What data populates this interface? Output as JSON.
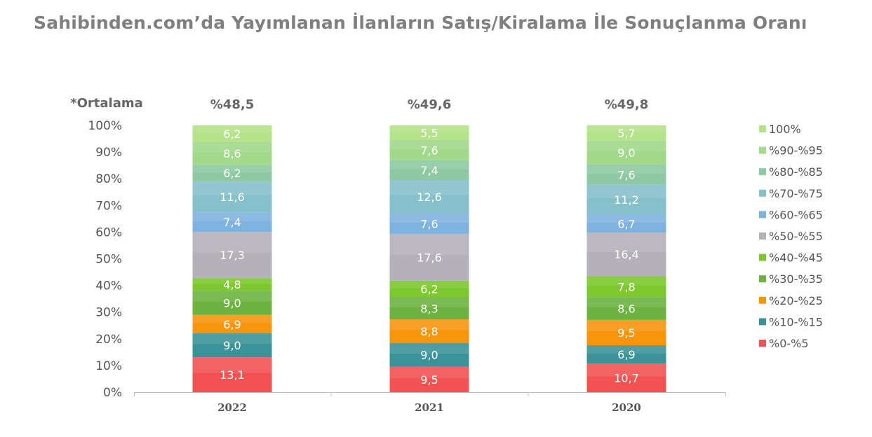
{
  "title": "Sahibinden.com’da Yayımlanan İlanların Satış/Kiralama İle Sonuçlanma Oranı",
  "chart_data": {
    "type": "bar",
    "stacked": true,
    "percent_stacked": true,
    "categories": [
      "2022",
      "2021",
      "2020"
    ],
    "averages_label": "*Ortalama",
    "averages": [
      "%48,5",
      "%49,6",
      "%49,8"
    ],
    "yticks": [
      "0%",
      "10%",
      "20%",
      "30%",
      "40%",
      "50%",
      "60%",
      "70%",
      "80%",
      "90%",
      "100%"
    ],
    "ylim": [
      0,
      100
    ],
    "legend_position": "right",
    "series": [
      {
        "name": "%0-%5",
        "color": "#f25252",
        "values": [
          13.1,
          9.5,
          10.7
        ],
        "labels": [
          "13,1",
          "9,5",
          "10,7"
        ]
      },
      {
        "name": "%10-%15",
        "color": "#3a9398",
        "values": [
          9.0,
          9.0,
          6.9
        ],
        "labels": [
          "9,0",
          "9,0",
          "6,9"
        ]
      },
      {
        "name": "%20-%25",
        "color": "#f7960d",
        "values": [
          6.9,
          8.8,
          9.5
        ],
        "labels": [
          "6,9",
          "8,8",
          "9,5"
        ]
      },
      {
        "name": "%30-%35",
        "color": "#6cb33f",
        "values": [
          9.0,
          8.3,
          8.6
        ],
        "labels": [
          "9,0",
          "8,3",
          "8,6"
        ]
      },
      {
        "name": "%40-%45",
        "color": "#7cc82e",
        "values": [
          4.8,
          6.2,
          7.8
        ],
        "labels": [
          "4,8",
          "6,2",
          "7,8"
        ]
      },
      {
        "name": "%50-%55",
        "color": "#b4b2b8",
        "values": [
          17.3,
          17.6,
          16.4
        ],
        "labels": [
          "17,3",
          "17,6",
          "16,4"
        ]
      },
      {
        "name": "%60-%65",
        "color": "#7fb3df",
        "values": [
          7.4,
          7.6,
          6.7
        ],
        "labels": [
          "7,4",
          "7,6",
          "6,7"
        ]
      },
      {
        "name": "%70-%75",
        "color": "#86c0cb",
        "values": [
          11.6,
          12.6,
          11.2
        ],
        "labels": [
          "11,6",
          "12,6",
          "11,2"
        ]
      },
      {
        "name": "%80-%85",
        "color": "#8ec9a3",
        "values": [
          6.2,
          7.4,
          7.6
        ],
        "labels": [
          "6,2",
          "7,4",
          "7,6"
        ]
      },
      {
        "name": "%90-%95",
        "color": "#a2d98a",
        "values": [
          8.6,
          7.6,
          9.0
        ],
        "labels": [
          "8,6",
          "7,6",
          "9,0"
        ]
      },
      {
        "name": "100%",
        "color": "#b4e38a",
        "values": [
          6.2,
          5.5,
          5.7
        ],
        "labels": [
          "6,2",
          "5,5",
          "5,7"
        ]
      }
    ]
  }
}
